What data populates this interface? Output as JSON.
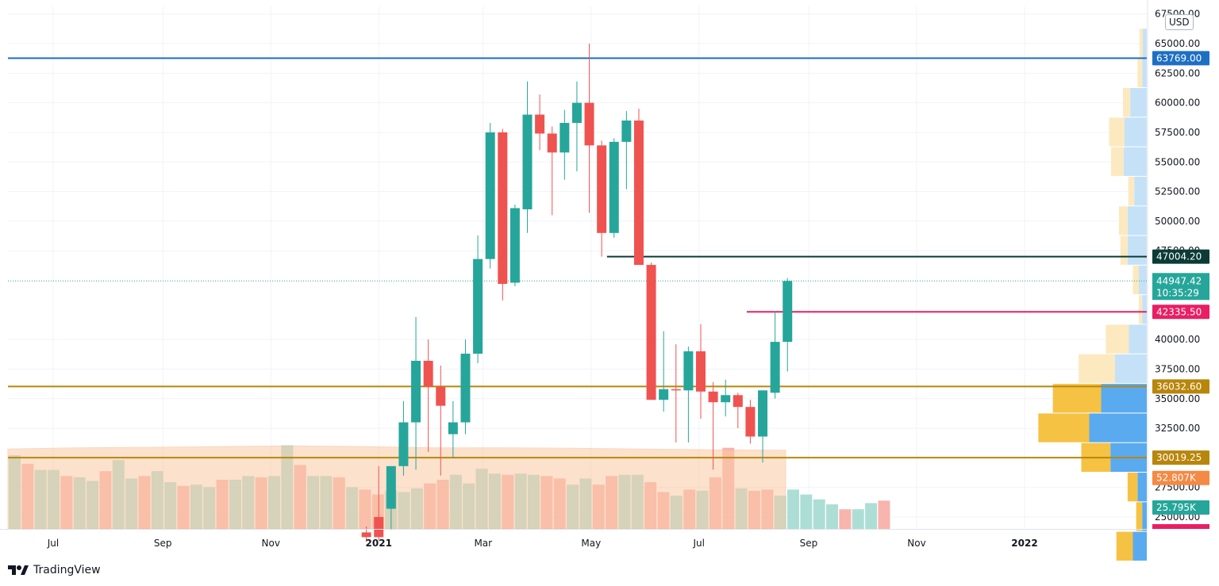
{
  "chart_data": {
    "type": "candlestick",
    "currency": "USD",
    "y_range": [
      23000,
      68000
    ],
    "y_ticks": [
      "67500.00",
      "65000.00",
      "62500.00",
      "60000.00",
      "57500.00",
      "55000.00",
      "52500.00",
      "50000.00",
      "47500.00",
      "40000.00",
      "37500.00",
      "35000.00",
      "32500.00",
      "27500.00",
      "25000.00"
    ],
    "y_tick_values": [
      67500,
      65000,
      62500,
      60000,
      57500,
      55000,
      52500,
      50000,
      47500,
      40000,
      37500,
      35000,
      32500,
      27500,
      25000
    ],
    "x_ticks": [
      {
        "label": "Jul",
        "day": 0,
        "bold": false
      },
      {
        "label": "Sep",
        "day": 62,
        "bold": false
      },
      {
        "label": "Nov",
        "day": 123,
        "bold": false
      },
      {
        "label": "2021",
        "day": 184,
        "bold": true
      },
      {
        "label": "Mar",
        "day": 243,
        "bold": false
      },
      {
        "label": "May",
        "day": 304,
        "bold": false
      },
      {
        "label": "Jul",
        "day": 365,
        "bold": false
      },
      {
        "label": "Sep",
        "day": 427,
        "bold": false
      },
      {
        "label": "Nov",
        "day": 488,
        "bold": false
      },
      {
        "label": "2022",
        "day": 549,
        "bold": true
      }
    ],
    "candles": [
      {
        "o": 23700,
        "h": 24200,
        "l": 22900,
        "c": 23300
      },
      {
        "o": 25000,
        "h": 29300,
        "l": 23000,
        "c": 23300
      },
      {
        "o": 25700,
        "h": 29100,
        "l": 23900,
        "c": 29300
      },
      {
        "o": 29300,
        "h": 34800,
        "l": 28500,
        "c": 33000
      },
      {
        "o": 33000,
        "h": 41900,
        "l": 29000,
        "c": 38200
      },
      {
        "o": 38200,
        "h": 40000,
        "l": 30500,
        "c": 36000
      },
      {
        "o": 36000,
        "h": 37800,
        "l": 28500,
        "c": 34400
      },
      {
        "o": 32000,
        "h": 34800,
        "l": 30000,
        "c": 33000
      },
      {
        "o": 33000,
        "h": 40000,
        "l": 32000,
        "c": 38800
      },
      {
        "o": 38800,
        "h": 48800,
        "l": 38000,
        "c": 46800
      },
      {
        "o": 46800,
        "h": 58300,
        "l": 46000,
        "c": 57500
      },
      {
        "o": 57500,
        "h": 57800,
        "l": 43300,
        "c": 44700
      },
      {
        "o": 44800,
        "h": 51400,
        "l": 44500,
        "c": 51100
      },
      {
        "o": 51000,
        "h": 61800,
        "l": 49000,
        "c": 59000
      },
      {
        "o": 59000,
        "h": 60700,
        "l": 56000,
        "c": 57400
      },
      {
        "o": 57400,
        "h": 58000,
        "l": 50500,
        "c": 55800
      },
      {
        "o": 55800,
        "h": 59400,
        "l": 53500,
        "c": 58300
      },
      {
        "o": 58300,
        "h": 61800,
        "l": 54200,
        "c": 60000
      },
      {
        "o": 60000,
        "h": 65000,
        "l": 50700,
        "c": 56400
      },
      {
        "o": 56400,
        "h": 56800,
        "l": 47000,
        "c": 49000
      },
      {
        "o": 49000,
        "h": 57000,
        "l": 48600,
        "c": 56700
      },
      {
        "o": 56700,
        "h": 59300,
        "l": 52700,
        "c": 58500
      },
      {
        "o": 58500,
        "h": 59500,
        "l": 46700,
        "c": 46300
      },
      {
        "o": 46300,
        "h": 46500,
        "l": 35000,
        "c": 34900
      },
      {
        "o": 34900,
        "h": 40700,
        "l": 33900,
        "c": 35800
      },
      {
        "o": 35800,
        "h": 39600,
        "l": 31300,
        "c": 35700
      },
      {
        "o": 35700,
        "h": 39400,
        "l": 31300,
        "c": 39000
      },
      {
        "o": 39000,
        "h": 41300,
        "l": 33300,
        "c": 35600
      },
      {
        "o": 35600,
        "h": 36400,
        "l": 29000,
        "c": 34700
      },
      {
        "o": 34700,
        "h": 36600,
        "l": 33500,
        "c": 35300
      },
      {
        "o": 35300,
        "h": 35500,
        "l": 32500,
        "c": 34300
      },
      {
        "o": 34300,
        "h": 34900,
        "l": 31200,
        "c": 31800
      },
      {
        "o": 31800,
        "h": 35600,
        "l": 29600,
        "c": 35700
      },
      {
        "o": 35500,
        "h": 42400,
        "l": 35000,
        "c": 39800
      },
      {
        "o": 39800,
        "h": 45200,
        "l": 37300,
        "c": 44947
      }
    ],
    "volume_range": [
      0,
      70000
    ],
    "volumes": [
      30000,
      26500,
      24000,
      24000,
      21500,
      21000,
      19500,
      23500,
      28000,
      20500,
      21500,
      23500,
      19000,
      17500,
      18000,
      17000,
      20000,
      20000,
      21500,
      21000,
      21500,
      34000,
      26000,
      21500,
      21500,
      21000,
      17000,
      16000,
      14000,
      15500,
      15000,
      16500,
      18500,
      20000,
      22000,
      18500,
      24500,
      22500,
      22000,
      22500,
      22000,
      21500,
      20500,
      18000,
      20500,
      18000,
      21500,
      22000,
      22000,
      19000,
      15000,
      13500,
      16000,
      15500,
      21000,
      33000,
      16500,
      15500,
      16000,
      13500,
      16000,
      14000,
      12000,
      10000,
      8000,
      8000,
      10500,
      11500
    ],
    "volume_ma": [
      32500,
      33000,
      33200,
      33500,
      33800,
      33500,
      33000,
      33000,
      32800,
      32500,
      32200,
      32000
    ],
    "horizontal_levels": [
      {
        "price": 63769.0,
        "label": "63769.00",
        "color": "#1e6fc4",
        "from_day": -3
      },
      {
        "price": 47004.2,
        "label": "47004.20",
        "color": "#0b3b36",
        "from_day": 313
      },
      {
        "price": 42335.5,
        "label": "42335.50",
        "color": "#e91e63",
        "from_day": 392
      },
      {
        "price": 36032.6,
        "label": "36032.60",
        "color": "#b8860b",
        "from_day": -3
      },
      {
        "price": 30019.25,
        "label": "30019.25",
        "color": "#b8860b",
        "from_day": -3
      }
    ],
    "last_price": {
      "price": 44947.42,
      "label": "44947.42",
      "countdown": "10:35:29",
      "color": "#26a69a"
    },
    "volume_labels": [
      {
        "label": "52.807K",
        "color": "#f48a44",
        "price": 28300
      },
      {
        "label": "25.795K",
        "color": "#26a69a",
        "price": 25800
      }
    ],
    "volume_profile": [
      {
        "price": 65000,
        "up": 500,
        "down": 600
      },
      {
        "price": 62500,
        "up": 700,
        "down": 700
      },
      {
        "price": 60000,
        "up": 1100,
        "down": 2500
      },
      {
        "price": 57500,
        "up": 2300,
        "down": 3400
      },
      {
        "price": 55000,
        "up": 1900,
        "down": 3500
      },
      {
        "price": 52500,
        "up": 900,
        "down": 1900
      },
      {
        "price": 50000,
        "up": 1300,
        "down": 2900
      },
      {
        "price": 47500,
        "up": 1100,
        "down": 2900
      },
      {
        "price": 45000,
        "up": 900,
        "down": 1200
      },
      {
        "price": 42500,
        "up": 500,
        "down": 700
      },
      {
        "price": 40000,
        "up": 3500,
        "down": 2700
      },
      {
        "price": 37500,
        "up": 5500,
        "down": 4800
      },
      {
        "price": 35000,
        "up": 7300,
        "down": 6900
      },
      {
        "price": 32500,
        "up": 7700,
        "down": 8700
      },
      {
        "price": 30000,
        "up": 4400,
        "down": 5500
      },
      {
        "price": 27500,
        "up": 1500,
        "down": 1400
      },
      {
        "price": 25000,
        "up": 900,
        "down": 700
      },
      {
        "price": 22500,
        "up": 2500,
        "down": 2100
      }
    ],
    "colors": {
      "up": "#26a69a",
      "down": "#ef5350",
      "vol_up": "#9fd8cf",
      "vol_down": "#f7a79f",
      "vol_ma": "#fbc9a4",
      "profile_up": "#f6c244",
      "profile_down": "#5aaaf0",
      "profile_up_light": "#fde9c0",
      "profile_down_light": "#c5e1f8",
      "grid": "#f0f3fa"
    }
  },
  "ui": {
    "currency_label": "USD",
    "brand": "TradingView"
  }
}
